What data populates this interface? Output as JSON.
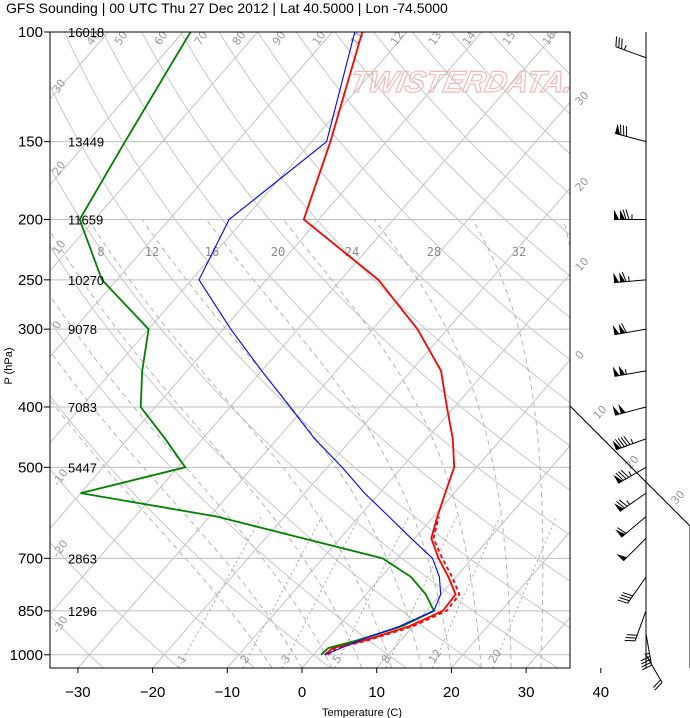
{
  "title": "GFS Sounding | 00 UTC Thu 27 Dec 2012 | Lat 40.5000 | Lon -74.5000",
  "watermark": "TWISTERDATA.COM",
  "chart_data": {
    "type": "skew-t",
    "xlabel": "Temperature (C)",
    "ylabel": "P (hPa)",
    "xlim": [
      -34,
      52
    ],
    "ylim": [
      1050,
      100
    ],
    "pressure_ticks": [
      100,
      150,
      200,
      250,
      300,
      400,
      500,
      700,
      850,
      1000
    ],
    "temperature_ticks": [
      -30,
      -20,
      -10,
      0,
      10,
      20,
      30,
      40
    ],
    "heights": [
      {
        "p": 100,
        "h": "16018"
      },
      {
        "p": 150,
        "h": "13449"
      },
      {
        "p": 200,
        "h": "11659"
      },
      {
        "p": 250,
        "h": "10270"
      },
      {
        "p": 300,
        "h": "9078"
      },
      {
        "p": 400,
        "h": "7083"
      },
      {
        "p": 500,
        "h": "5447"
      },
      {
        "p": 700,
        "h": "2863"
      },
      {
        "p": 850,
        "h": "1296"
      }
    ],
    "isotherm_labels": [
      "-30",
      "-20",
      "-10",
      "0",
      "10",
      "20",
      "30",
      "40",
      "50",
      "60",
      "70",
      "80",
      "90",
      "100",
      "110",
      "120",
      "130",
      "140",
      "150",
      "160"
    ],
    "mixing_ratio_labels": [
      "1",
      "2",
      "3",
      "5",
      "8",
      "12",
      "20"
    ],
    "wetbulb_labels": [
      "8",
      "12",
      "16",
      "20",
      "24",
      "28",
      "32"
    ],
    "series": [
      {
        "name": "temperature",
        "color": "#ff0000",
        "style": "solid",
        "points": [
          [
            1000,
            1.5
          ],
          [
            975,
            1.8
          ],
          [
            950,
            5
          ],
          [
            900,
            9.5
          ],
          [
            850,
            12.2
          ],
          [
            800,
            12
          ],
          [
            750,
            9
          ],
          [
            700,
            5.5
          ],
          [
            650,
            2.2
          ],
          [
            600,
            0.5
          ],
          [
            550,
            -1.2
          ],
          [
            500,
            -3
          ],
          [
            450,
            -6.5
          ],
          [
            400,
            -11
          ],
          [
            350,
            -16
          ],
          [
            300,
            -24
          ],
          [
            250,
            -35
          ],
          [
            200,
            -52
          ],
          [
            150,
            -57.5
          ],
          [
            100,
            -66
          ]
        ]
      },
      {
        "name": "virtual-temperature",
        "color": "#ff0000",
        "style": "dashed",
        "points": [
          [
            1000,
            1.9
          ],
          [
            975,
            2.2
          ],
          [
            950,
            5.4
          ],
          [
            900,
            10
          ],
          [
            850,
            12.7
          ],
          [
            800,
            12.5
          ],
          [
            750,
            9.5
          ],
          [
            700,
            6
          ],
          [
            650,
            2.5
          ],
          [
            600,
            0.7
          ]
        ]
      },
      {
        "name": "dewpoint",
        "color": "#008000",
        "style": "solid",
        "points": [
          [
            1000,
            1
          ],
          [
            975,
            1.2
          ],
          [
            950,
            4
          ],
          [
            900,
            8.5
          ],
          [
            850,
            11
          ],
          [
            800,
            8
          ],
          [
            750,
            4
          ],
          [
            700,
            -2
          ],
          [
            650,
            -15
          ],
          [
            600,
            -29
          ],
          [
            550,
            -50
          ],
          [
            500,
            -39
          ],
          [
            450,
            -45
          ],
          [
            400,
            -52
          ],
          [
            350,
            -56
          ],
          [
            300,
            -60
          ],
          [
            250,
            -72
          ],
          [
            200,
            -82
          ],
          [
            150,
            -85
          ],
          [
            100,
            -89
          ]
        ]
      },
      {
        "name": "parcel",
        "color": "#0000ff",
        "style": "solid",
        "points": [
          [
            1000,
            1.5
          ],
          [
            950,
            4.4
          ],
          [
            900,
            8.2
          ],
          [
            850,
            11
          ],
          [
            800,
            10
          ],
          [
            750,
            7.8
          ],
          [
            700,
            4.7
          ],
          [
            650,
            -0.5
          ],
          [
            600,
            -6
          ],
          [
            550,
            -12
          ],
          [
            500,
            -18
          ],
          [
            450,
            -25
          ],
          [
            400,
            -32
          ],
          [
            350,
            -40
          ],
          [
            300,
            -49
          ],
          [
            250,
            -59
          ],
          [
            200,
            -62
          ],
          [
            150,
            -58
          ],
          [
            100,
            -67
          ]
        ]
      }
    ],
    "wind_barbs": [
      {
        "p": 110,
        "dir": 290,
        "kt": 35
      },
      {
        "p": 150,
        "dir": 285,
        "kt": 80
      },
      {
        "p": 200,
        "dir": 270,
        "kt": 125
      },
      {
        "p": 250,
        "dir": 265,
        "kt": 115
      },
      {
        "p": 300,
        "dir": 260,
        "kt": 110
      },
      {
        "p": 350,
        "dir": 260,
        "kt": 105
      },
      {
        "p": 400,
        "dir": 255,
        "kt": 100
      },
      {
        "p": 450,
        "dir": 250,
        "kt": 95
      },
      {
        "p": 500,
        "dir": 240,
        "kt": 85
      },
      {
        "p": 550,
        "dir": 235,
        "kt": 75
      },
      {
        "p": 600,
        "dir": 230,
        "kt": 60
      },
      {
        "p": 650,
        "dir": 225,
        "kt": 50
      },
      {
        "p": 750,
        "dir": 215,
        "kt": 40
      },
      {
        "p": 850,
        "dir": 200,
        "kt": 30
      },
      {
        "p": 925,
        "dir": 170,
        "kt": 45
      },
      {
        "p": 1000,
        "dir": 150,
        "kt": 20
      }
    ],
    "hodograph_outline": true
  }
}
